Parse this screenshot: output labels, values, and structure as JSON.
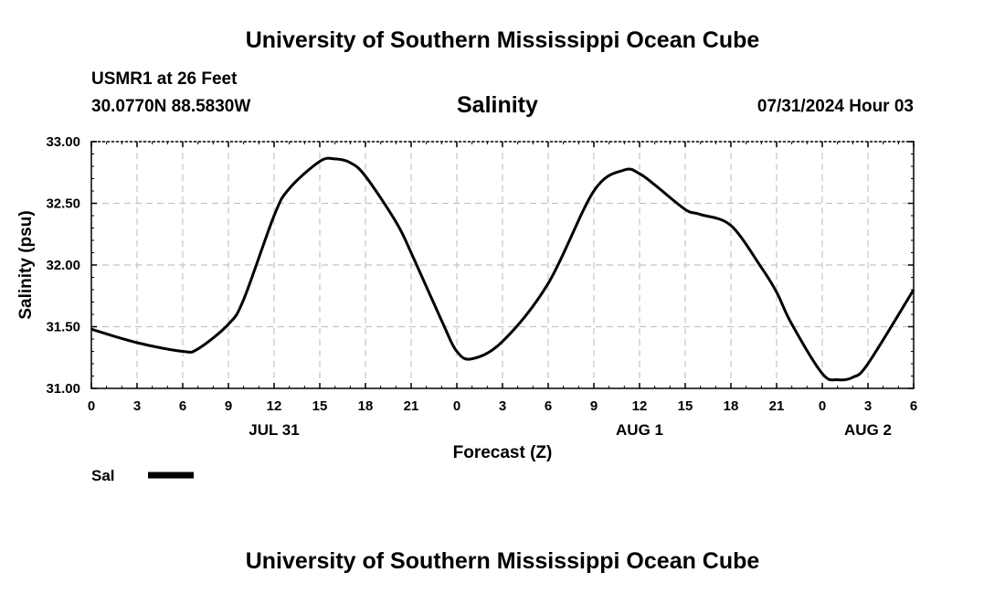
{
  "header": {
    "title_top": "University of Southern Mississippi Ocean Cube",
    "station": "USMR1 at 26 Feet",
    "coords": "30.0770N  88.5830W",
    "parameter": "Salinity",
    "datetime": "07/31/2024 Hour 03",
    "title_bottom": "University of Southern Mississippi Ocean Cube"
  },
  "legend": {
    "label": "Sal",
    "color": "#000000"
  },
  "chart_data": {
    "type": "line",
    "title": "Salinity",
    "xlabel": "Forecast (Z)",
    "ylabel": "Salinity (psu)",
    "xlim": [
      0,
      54
    ],
    "ylim": [
      31.0,
      33.0
    ],
    "grid": true,
    "legend_position": "bottom-left",
    "x_tick_labels": [
      "0",
      "3",
      "6",
      "9",
      "12",
      "15",
      "18",
      "21",
      "0",
      "3",
      "6",
      "9",
      "12",
      "15",
      "18",
      "21",
      "0",
      "3",
      "6"
    ],
    "date_labels": [
      {
        "label": "JUL 31",
        "hour": 12
      },
      {
        "label": "AUG 1",
        "hour": 36
      },
      {
        "label": "AUG 2",
        "hour": 51
      }
    ],
    "y_ticks": [
      "31.00",
      "31.50",
      "32.00",
      "32.50",
      "33.00"
    ],
    "series": [
      {
        "name": "Sal",
        "x": [
          0,
          3,
          6,
          7,
          9,
          10,
          12,
          13,
          15,
          16,
          17,
          18,
          20,
          21,
          23,
          24,
          25,
          27,
          30,
          33,
          35,
          36,
          37,
          39,
          40,
          42,
          44,
          45,
          46,
          48,
          49,
          50,
          51,
          54
        ],
        "y": [
          31.48,
          31.37,
          31.3,
          31.32,
          31.52,
          31.72,
          32.4,
          32.62,
          32.84,
          32.86,
          32.83,
          32.72,
          32.35,
          32.1,
          31.55,
          31.3,
          31.24,
          31.38,
          31.85,
          32.6,
          32.77,
          32.74,
          32.65,
          32.45,
          32.41,
          32.32,
          31.98,
          31.78,
          31.52,
          31.12,
          31.07,
          31.09,
          31.2,
          31.8
        ]
      }
    ]
  }
}
